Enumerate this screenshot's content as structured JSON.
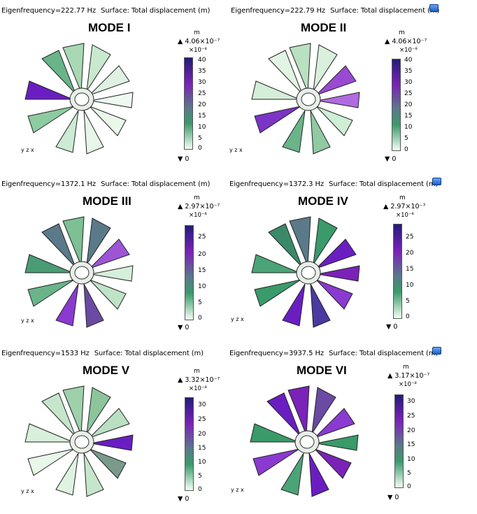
{
  "colors": {
    "colorbar_top": "#231c78",
    "colorbar_mid1": "#7b22b8",
    "colorbar_mid2": "#5a7a8a",
    "colorbar_mid3": "#3a9a6a",
    "colorbar_bottom": "#f1fff4",
    "mesh_light": "#dff1e2",
    "mesh_mid": "#6ab48a",
    "mesh_high": "#6a1ec2"
  },
  "icons": [
    "flag-icon",
    "axis-triad-icon",
    "max-triangle-icon",
    "min-triangle-icon"
  ],
  "panels": [
    {
      "eigenfrequency": "Eigenfrequency=222.77 Hz",
      "surface": "Surface: Total displacement (m)",
      "title": "MODE I",
      "unit": "m",
      "max": "▲ 4.06×10⁻⁷",
      "scale": "×10⁻⁸",
      "ticks": [
        "40",
        "35",
        "30",
        "25",
        "20",
        "15",
        "10",
        "5",
        "0"
      ],
      "min": "▼ 0",
      "axes": {
        "y": "y",
        "z": "z",
        "x": "x"
      }
    },
    {
      "eigenfrequency": "Eigenfrequency=222.79 Hz",
      "surface": "Surface: Total displacement (m)",
      "title": "MODE II",
      "unit": "m",
      "max": "▲ 4.06×10⁻⁷",
      "scale": "×10⁻⁸",
      "ticks": [
        "40",
        "35",
        "30",
        "25",
        "20",
        "15",
        "10",
        "5",
        "0"
      ],
      "min": "▼ 0",
      "axes": {
        "y": "y",
        "z": "z",
        "x": "x"
      }
    },
    {
      "eigenfrequency": "Eigenfrequency=1372.1 Hz",
      "surface": "Surface: Total displacement (m)",
      "title": "MODE III",
      "unit": "m",
      "max": "▲ 2.97×10⁻⁷",
      "scale": "×10⁻⁸",
      "ticks": [
        "25",
        "20",
        "15",
        "10",
        "5",
        "0"
      ],
      "min": "▼ 0",
      "axes": {
        "y": "y",
        "z": "z",
        "x": "x"
      }
    },
    {
      "eigenfrequency": "Eigenfrequency=1372.3 Hz",
      "surface": "Surface: Total displacement (m)",
      "title": "MODE IV",
      "unit": "m",
      "max": "▲ 2.97×10⁻⁷",
      "scale": "×10⁻⁸",
      "ticks": [
        "25",
        "20",
        "15",
        "10",
        "5",
        "0"
      ],
      "min": "▼ 0",
      "axes": {
        "y": "y",
        "z": "z",
        "x": "x"
      }
    },
    {
      "eigenfrequency": "Eigenfrequency=1533 Hz",
      "surface": "Surface: Total displacement (m)",
      "title": "MODE V",
      "unit": "m",
      "max": "▲ 3.32×10⁻⁷",
      "scale": "×10⁻⁸",
      "ticks": [
        "30",
        "25",
        "20",
        "15",
        "10",
        "5",
        "0"
      ],
      "min": "▼ 0",
      "axes": {
        "y": "y",
        "z": "z",
        "x": "x"
      }
    },
    {
      "eigenfrequency": "Eigenfrequency=3937.5 Hz",
      "surface": "Surface: Total displacement (m)",
      "title": "MODE VI",
      "unit": "m",
      "max": "▲ 3.17×10⁻⁷",
      "scale": "×10⁻⁸",
      "ticks": [
        "30",
        "25",
        "20",
        "15",
        "10",
        "5",
        "0"
      ],
      "min": "▼ 0",
      "axes": {
        "y": "y",
        "z": "z",
        "x": "x"
      }
    }
  ]
}
